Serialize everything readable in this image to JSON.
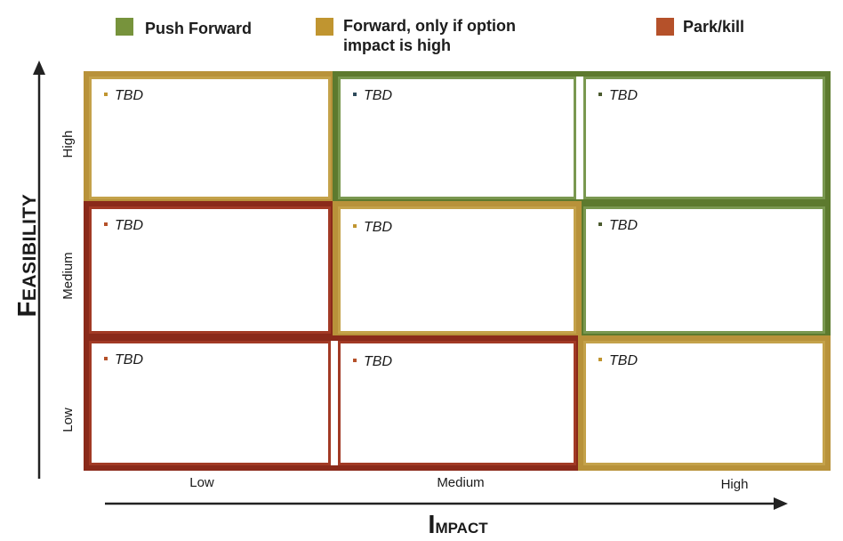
{
  "legend": [
    {
      "label": "Push Forward",
      "color": "#77933c"
    },
    {
      "label": "Forward, only if option",
      "label2": "impact is high",
      "color": "#c09530"
    },
    {
      "label": "Park/kill",
      "color": "#b5512a"
    }
  ],
  "axes": {
    "y_title_first": "F",
    "y_title_rest": "EASIBILITY",
    "x_title_first": "I",
    "x_title_rest": "MPACT",
    "y_ticks": [
      "High",
      "Medium",
      "Low"
    ],
    "x_ticks": [
      "Low",
      "Medium",
      "High"
    ]
  },
  "colors": {
    "green": "#5d7a2e",
    "gold": "#b8923a",
    "red": "#8a2a1a"
  },
  "cells": [
    {
      "row": "High",
      "col": "Low",
      "text": "TBD",
      "zone": "gold"
    },
    {
      "row": "High",
      "col": "Medium",
      "text": "TBD",
      "zone": "green"
    },
    {
      "row": "High",
      "col": "High",
      "text": "TBD",
      "zone": "green"
    },
    {
      "row": "Medium",
      "col": "Low",
      "text": "TBD",
      "zone": "red"
    },
    {
      "row": "Medium",
      "col": "Medium",
      "text": "TBD",
      "zone": "gold"
    },
    {
      "row": "Medium",
      "col": "High",
      "text": "TBD",
      "zone": "green"
    },
    {
      "row": "Low",
      "col": "Low",
      "text": "TBD",
      "zone": "red"
    },
    {
      "row": "Low",
      "col": "Medium",
      "text": "TBD",
      "zone": "red"
    },
    {
      "row": "Low",
      "col": "High",
      "text": "TBD",
      "zone": "gold"
    }
  ]
}
